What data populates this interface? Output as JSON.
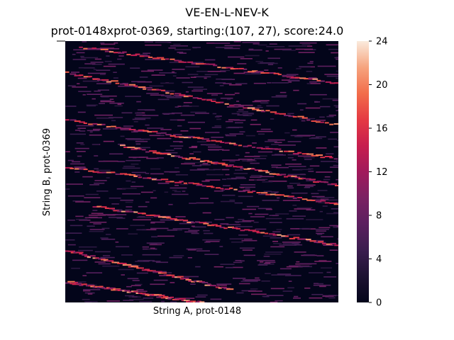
{
  "chart_data": {
    "type": "heatmap",
    "title": "VE-EN-L-NEV-K",
    "subtitle": "prot-0148xprot-0369, starting:(107, 27), score:24.0",
    "xlabel": "String A, prot-0148",
    "ylabel": "String B, prot-0369",
    "colorbar": {
      "min": 0,
      "max": 24,
      "ticks": [
        "0",
        "4",
        "8",
        "12",
        "16",
        "20",
        "24"
      ]
    },
    "grid": false,
    "colors": {
      "low": "#03051a",
      "high": "#faebdd"
    }
  }
}
